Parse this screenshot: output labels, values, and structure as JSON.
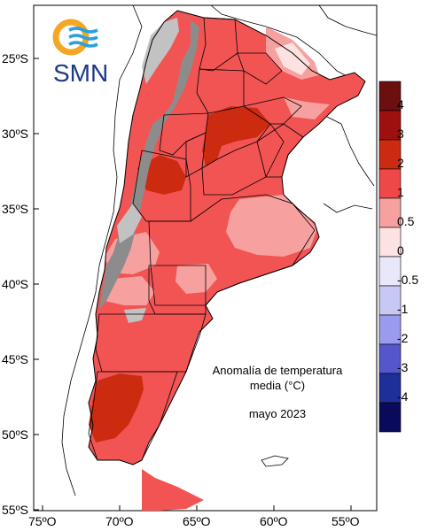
{
  "map": {
    "title_line1": "Anomalía de temperatura",
    "title_line2": "media (°C)",
    "period": "mayo 2023",
    "latitude_labels": [
      "25ºS",
      "30ºS",
      "35ºS",
      "40ºS",
      "45ºS",
      "50ºS",
      "55ºS"
    ],
    "longitude_labels": [
      "75ºO",
      "70ºO",
      "65ºO",
      "60ºO",
      "55ºO"
    ]
  },
  "logo": {
    "text": "SMN",
    "colors": {
      "ring": "#f5a623",
      "waves": "#2aa0e0",
      "text": "#1b3a8a"
    }
  },
  "legend": {
    "labels": [
      "4",
      "3",
      "2",
      "1",
      "0.5",
      "0",
      "-0.5",
      "-1",
      "-2",
      "-3",
      "-4"
    ],
    "colors": [
      "#6b0f0f",
      "#9e1010",
      "#cc2b10",
      "#f04848",
      "#f7a0a0",
      "#fde2e2",
      "#e8e8fa",
      "#c8c8f4",
      "#9a9aee",
      "#5555cc",
      "#1f2f99",
      "#0a0a5a"
    ]
  },
  "colors": {
    "anomaly_1_2": "#f25454",
    "anomaly_2_3": "#cc2b10",
    "anomaly_05_1": "#f7a0a0",
    "anomaly_0_05": "#fde2e2",
    "terrain_gray": "#8c8c8c"
  }
}
